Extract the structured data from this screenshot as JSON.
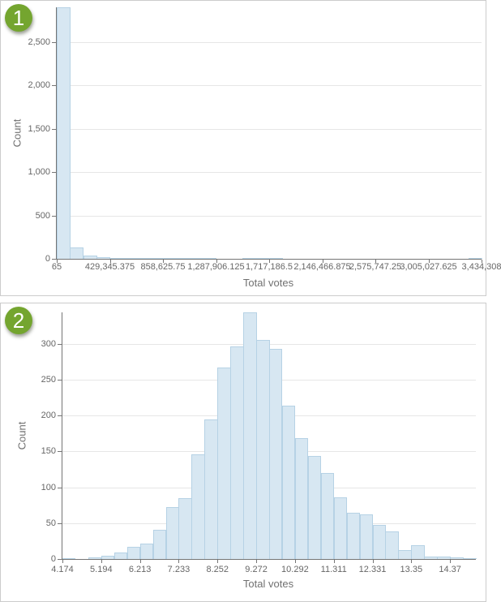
{
  "panels": [
    {
      "badge": "1"
    },
    {
      "badge": "2"
    }
  ],
  "colors": {
    "badge_green": "#74a52f",
    "bar_fill": "#d7e7f2",
    "bar_border": "#b6d2e5",
    "axis_line": "#757575",
    "gridline": "#e6e6e6",
    "tick_label": "#666666",
    "axis_title": "#707070"
  },
  "chart_data": [
    {
      "type": "bar",
      "subtype": "histogram",
      "title": "",
      "xlabel": "Total votes",
      "ylabel": "Count",
      "grid": "horizontal only",
      "legend": "none",
      "bin_start": 65,
      "bin_width": 107320.09,
      "x_range": [
        65,
        3434308
      ],
      "x_tick_labels": [
        "65",
        "429,345.375",
        "858,625.75",
        "1,287,906.125",
        "1,717,186.5",
        "2,146,466.875",
        "2,575,747.25",
        "3,005,027.625",
        "3,434,308"
      ],
      "tick_every_bins": 4,
      "y_ticks": [
        {
          "value": 0,
          "label": "0"
        },
        {
          "value": 500,
          "label": "500"
        },
        {
          "value": 1000,
          "label": "1,000"
        },
        {
          "value": 1500,
          "label": "1,500"
        },
        {
          "value": 2000,
          "label": "2,000"
        },
        {
          "value": 2500,
          "label": "2,500"
        }
      ],
      "counts": [
        2900,
        130,
        42,
        18,
        10,
        6,
        4,
        3,
        2,
        1,
        1,
        1,
        0,
        0,
        1,
        3,
        2,
        0,
        0,
        0,
        0,
        0,
        0,
        0,
        0,
        0,
        0,
        0,
        0,
        0,
        0,
        1
      ]
    },
    {
      "type": "bar",
      "subtype": "histogram",
      "title": "",
      "xlabel": "Total votes",
      "ylabel": "Count",
      "grid": "horizontal only",
      "legend": "none",
      "bin_start": 4.174,
      "bin_width": 0.3399,
      "x_range": [
        4.174,
        15.049
      ],
      "x_tick_labels": [
        "4.174",
        "5.194",
        "6.213",
        "7.233",
        "8.252",
        "9.272",
        "10.292",
        "11.311",
        "12.331",
        "13.35",
        "14.37"
      ],
      "tick_every_bins": 3,
      "y_ticks": [
        {
          "value": 0,
          "label": "0"
        },
        {
          "value": 50,
          "label": "50"
        },
        {
          "value": 100,
          "label": "100"
        },
        {
          "value": 150,
          "label": "150"
        },
        {
          "value": 200,
          "label": "200"
        },
        {
          "value": 250,
          "label": "250"
        },
        {
          "value": 300,
          "label": "300"
        }
      ],
      "counts": [
        1,
        0,
        2,
        5,
        9,
        17,
        22,
        41,
        72,
        85,
        146,
        195,
        267,
        297,
        344,
        305,
        293,
        214,
        169,
        144,
        120,
        86,
        64,
        62,
        48,
        38,
        12,
        19,
        3,
        3,
        2,
        1
      ]
    }
  ]
}
